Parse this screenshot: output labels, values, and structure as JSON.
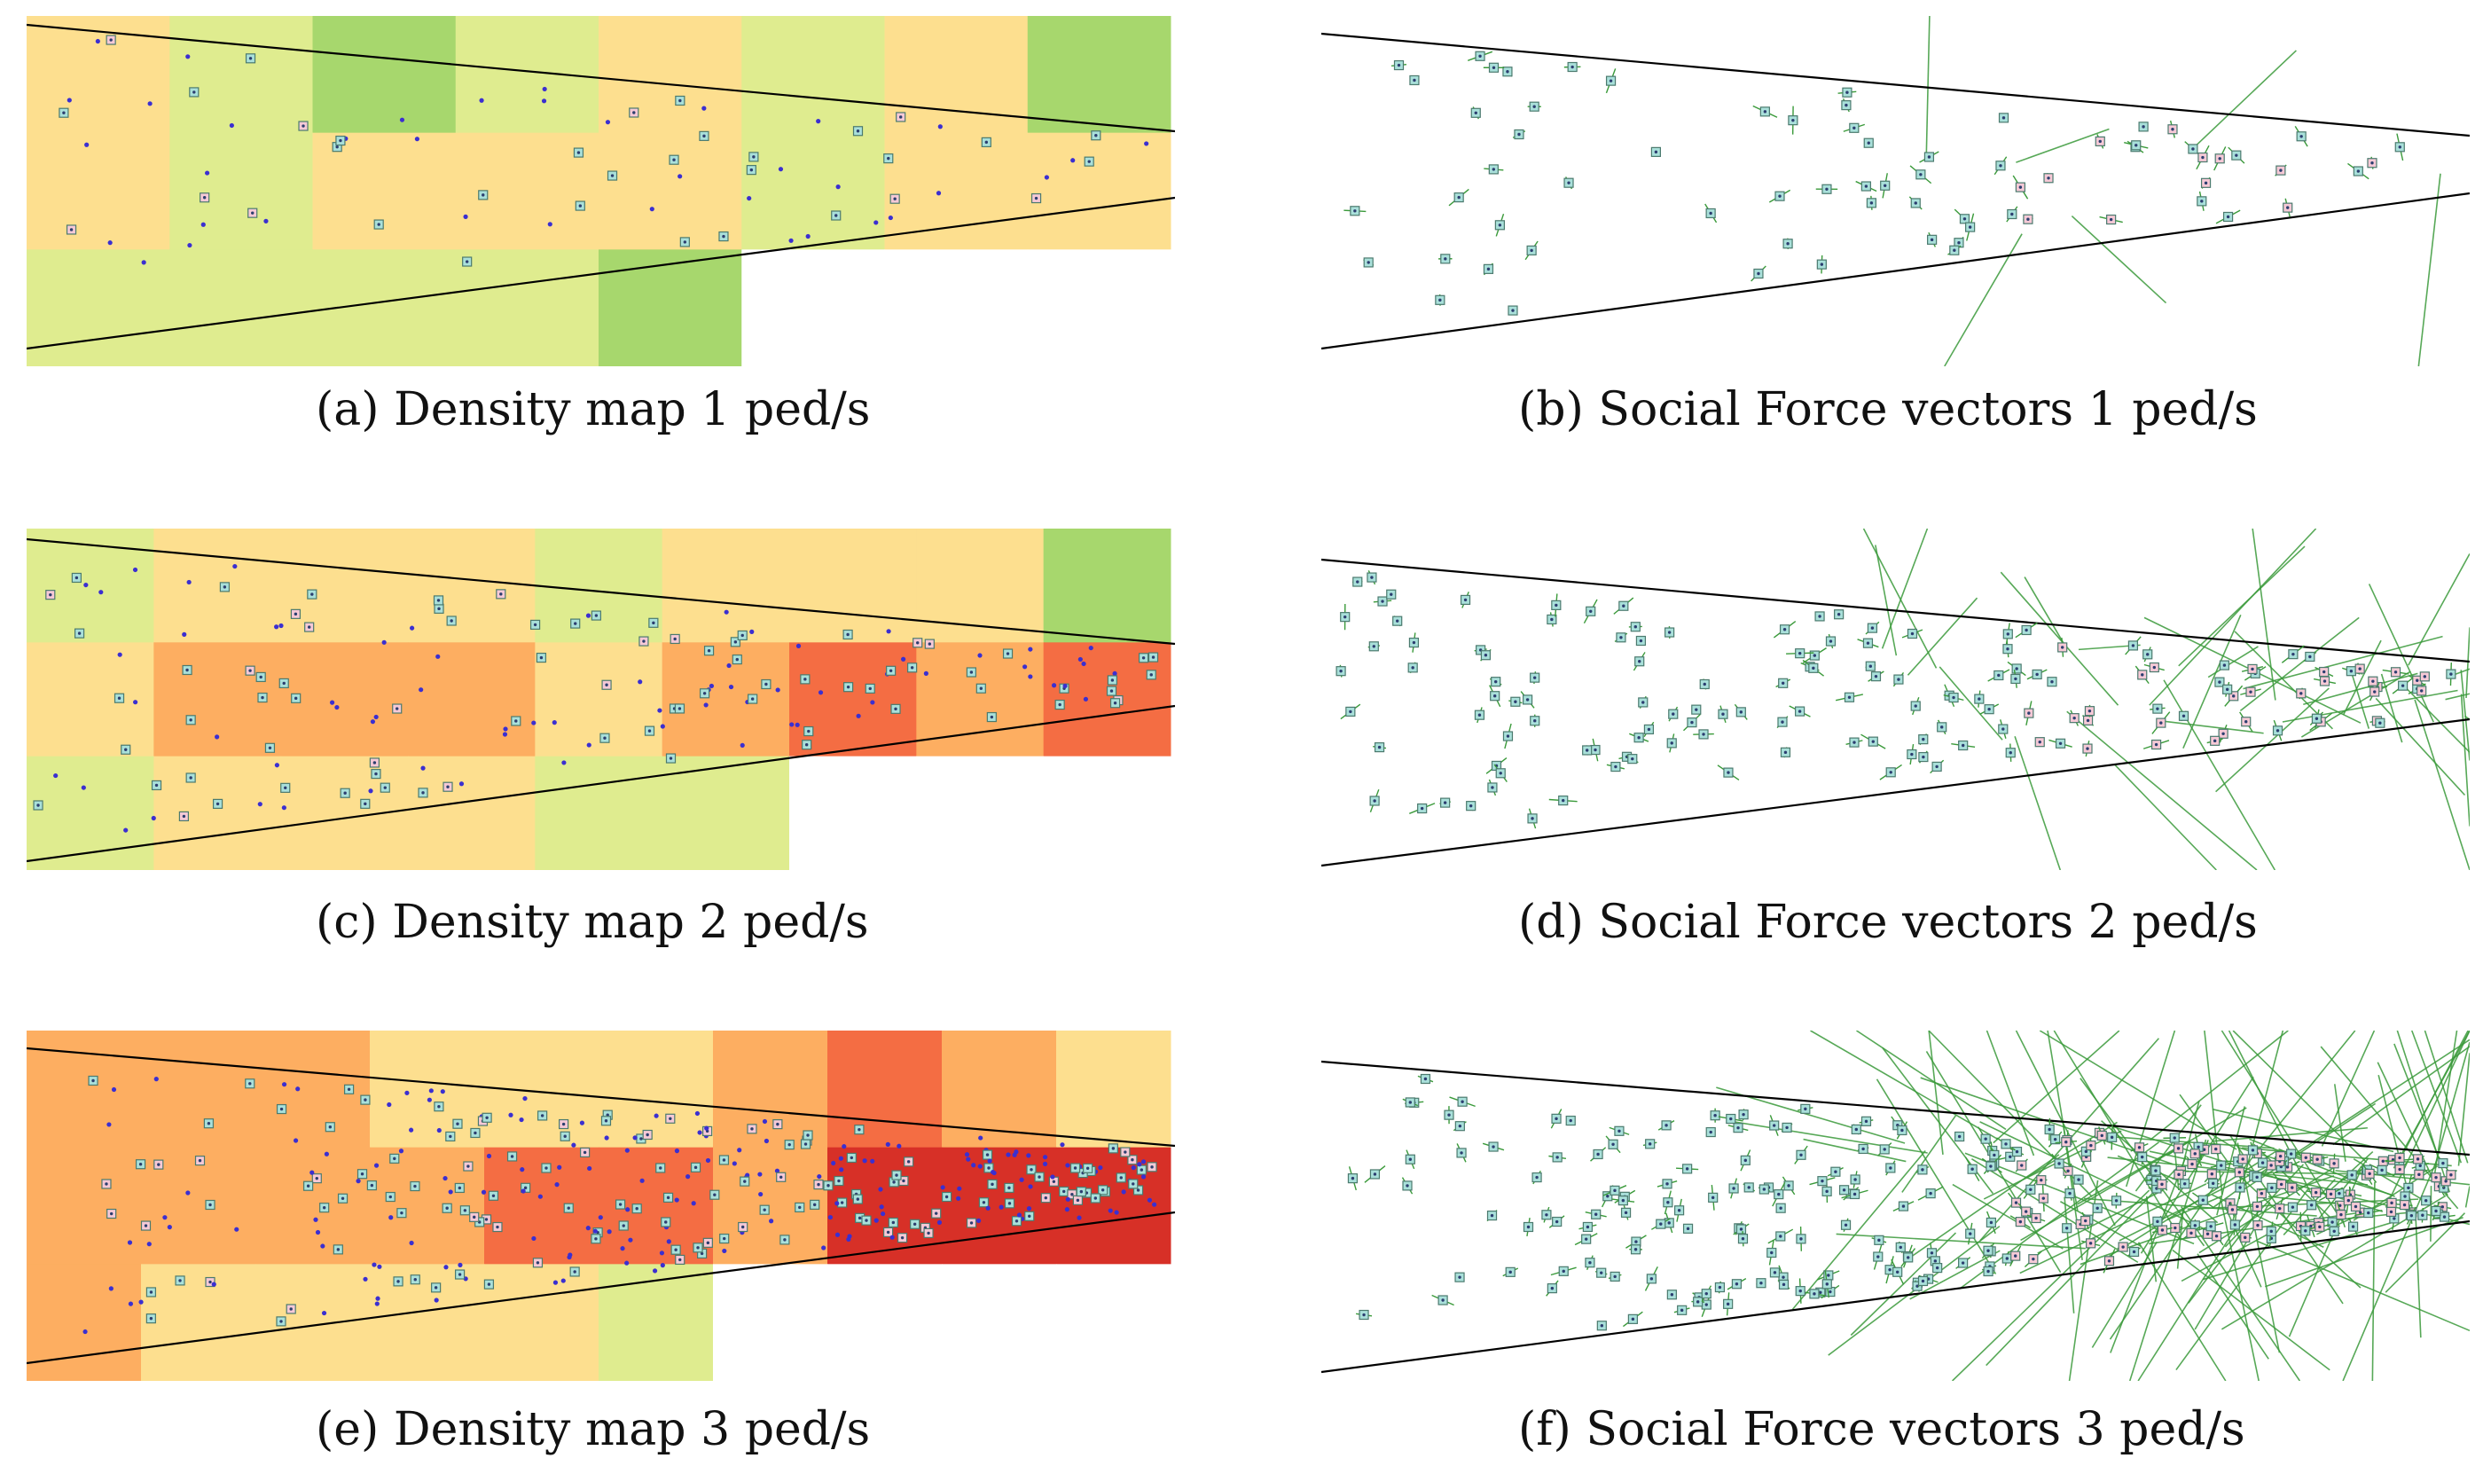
{
  "figure": {
    "panels": [
      {
        "id": "a",
        "kind": "density",
        "caption": "(a) Density map 1 ped/s",
        "seed": 11,
        "peds": 70,
        "grid_colors": [
          [
            "#fddf8f",
            "#dfec8f",
            "#a7d76d",
            "#dfec8f",
            "#fddf8f",
            "#dfec8f",
            "#fddf8f",
            "#a7d76d"
          ],
          [
            "#fddf8f",
            "#dfec8f",
            "#fddf8f",
            "#fddf8f",
            "#fddf8f",
            "#dfec8f",
            "#fddf8f",
            "#fddf8f"
          ],
          [
            "#dfec8f",
            "#dfec8f",
            "#dfec8f",
            "#dfec8f",
            "#a7d76d",
            "#ffffff",
            "#ffffff",
            "#ffffff"
          ]
        ]
      },
      {
        "id": "b",
        "kind": "force",
        "caption": "(b) Social Force vectors 1 ped/s",
        "seed": 21,
        "peds": 70,
        "long_vectors": 6
      },
      {
        "id": "c",
        "kind": "density",
        "caption": "(c) Density map 2 ped/s",
        "seed": 31,
        "peds": 150,
        "grid_colors": [
          [
            "#dfec8f",
            "#fddf8f",
            "#fddf8f",
            "#fddf8f",
            "#dfec8f",
            "#fddf8f",
            "#fddf8f",
            "#fddf8f",
            "#a7d76d"
          ],
          [
            "#fddf8f",
            "#fdae61",
            "#fdae61",
            "#fdae61",
            "#fddf8f",
            "#fdae61",
            "#f46d43",
            "#fdae61",
            "#f46d43"
          ],
          [
            "#dfec8f",
            "#fddf8f",
            "#fddf8f",
            "#fddf8f",
            "#dfec8f",
            "#dfec8f",
            "#ffffff",
            "#ffffff",
            "#ffffff"
          ]
        ]
      },
      {
        "id": "d",
        "kind": "force",
        "caption": "(d) Social Force vectors 2 ped/s",
        "seed": 41,
        "peds": 150,
        "long_vectors": 40
      },
      {
        "id": "e",
        "kind": "density",
        "caption": "(e) Density map 3 ped/s",
        "seed": 51,
        "peds": 330,
        "grid_colors": [
          [
            "#fdae61",
            "#fdae61",
            "#fdae61",
            "#fddf8f",
            "#fddf8f",
            "#fddf8f",
            "#fdae61",
            "#f46d43",
            "#fdae61",
            "#fddf8f"
          ],
          [
            "#fdae61",
            "#fdae61",
            "#fdae61",
            "#fdae61",
            "#f46d43",
            "#f46d43",
            "#fdae61",
            "#d73027",
            "#d73027",
            "#d73027"
          ],
          [
            "#fdae61",
            "#fddf8f",
            "#fddf8f",
            "#fddf8f",
            "#fddf8f",
            "#dfec8f",
            "#ffffff",
            "#ffffff",
            "#ffffff",
            "#ffffff"
          ]
        ]
      },
      {
        "id": "f",
        "kind": "force",
        "caption": "(f) Social Force vectors 3 ped/s",
        "seed": 61,
        "peds": 300,
        "long_vectors": 140
      }
    ]
  }
}
